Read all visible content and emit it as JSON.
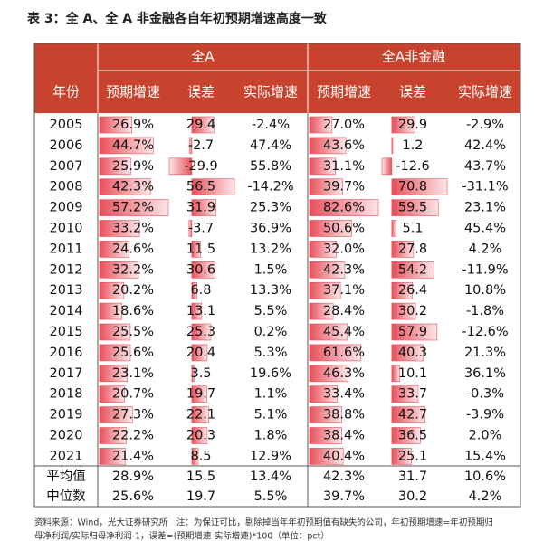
{
  "title": "表 3：全 A、全 A 非金融各自年初预期增速高度一致",
  "table": {
    "group_headers": [
      "全A",
      "全A非金融"
    ],
    "header": [
      "年份",
      "预期增速",
      "误差",
      "实际增速",
      "预期增速",
      "误差",
      "实际增速"
    ],
    "rows": [
      [
        "2005",
        "26.9%",
        "29.4",
        "-2.4%",
        "27.0%",
        "29.9",
        "-2.9%"
      ],
      [
        "2006",
        "44.7%",
        "-2.7",
        "47.4%",
        "43.6%",
        "1.2",
        "42.4%"
      ],
      [
        "2007",
        "25.9%",
        "-29.9",
        "55.8%",
        "31.1%",
        "-12.6",
        "43.7%"
      ],
      [
        "2008",
        "42.3%",
        "56.5",
        "-14.2%",
        "39.7%",
        "70.8",
        "-31.1%"
      ],
      [
        "2009",
        "57.2%",
        "31.9",
        "25.3%",
        "82.6%",
        "59.5",
        "23.1%"
      ],
      [
        "2010",
        "33.2%",
        "-3.7",
        "36.9%",
        "50.6%",
        "5.1",
        "45.4%"
      ],
      [
        "2011",
        "24.6%",
        "11.5",
        "13.2%",
        "32.0%",
        "27.8",
        "4.2%"
      ],
      [
        "2012",
        "32.2%",
        "30.6",
        "1.5%",
        "42.3%",
        "54.2",
        "-11.9%"
      ],
      [
        "2013",
        "20.2%",
        "6.8",
        "13.3%",
        "37.1%",
        "26.4",
        "10.8%"
      ],
      [
        "2014",
        "18.6%",
        "13.1",
        "5.5%",
        "28.4%",
        "30.2",
        "-1.8%"
      ],
      [
        "2015",
        "25.5%",
        "25.3",
        "0.2%",
        "45.4%",
        "57.9",
        "-12.6%"
      ],
      [
        "2016",
        "25.6%",
        "20.4",
        "5.3%",
        "61.6%",
        "40.3",
        "21.3%"
      ],
      [
        "2017",
        "23.1%",
        "3.5",
        "19.6%",
        "46.3%",
        "10.1",
        "36.1%"
      ],
      [
        "2018",
        "20.7%",
        "19.7",
        "1.1%",
        "33.4%",
        "33.7",
        "-0.3%"
      ],
      [
        "2019",
        "27.3%",
        "22.1",
        "5.1%",
        "38.8%",
        "42.7",
        "-3.9%"
      ],
      [
        "2020",
        "22.2%",
        "20.3",
        "1.8%",
        "38.4%",
        "36.5",
        "2.0%"
      ],
      [
        "2021",
        "21.4%",
        "8.5",
        "12.9%",
        "40.4%",
        "25.1",
        "15.4%"
      ]
    ],
    "summary": [
      [
        "平均值",
        "28.9%",
        "15.5",
        "13.4%",
        "42.3%",
        "31.7",
        "10.6%"
      ],
      [
        "中位数",
        "25.6%",
        "19.7",
        "5.5%",
        "39.7%",
        "30.2",
        "4.2%"
      ]
    ]
  },
  "footnote": [
    "资料来源：Wind，光大证券研究所　注：为保证可比，剔除掉当年年初预期值有缺失的公司，年初预期增速=年初预期归",
    "母净利润/实际归母净利润-1，误差=(预期增速-实际增速)*100（单位：pct）"
  ]
}
